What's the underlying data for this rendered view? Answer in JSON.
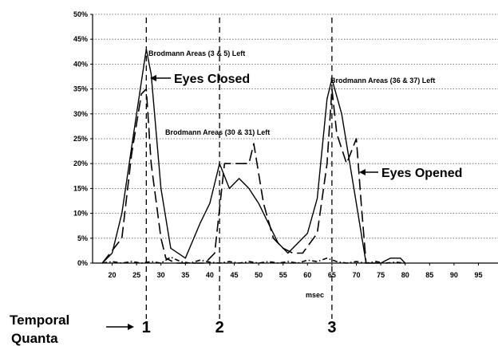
{
  "chart_data": {
    "type": "line",
    "xlabel": "msec",
    "ylim": [
      0,
      50
    ],
    "y_ticks": [
      "0%",
      "5%",
      "10%",
      "15%",
      "20%",
      "25%",
      "30%",
      "35%",
      "40%",
      "45%",
      "50%"
    ],
    "x_ticks": [
      "20",
      "25",
      "30",
      "35",
      "40",
      "45",
      "50",
      "55",
      "60",
      "65",
      "70",
      "75",
      "80",
      "85",
      "90",
      "95"
    ],
    "grid": "horizontal dotted",
    "colors": {
      "line": "#000000",
      "background": "#ffffff"
    },
    "series": [
      {
        "style": "solid",
        "x": [
          18,
          20,
          22,
          25,
          27,
          28,
          30,
          32,
          35,
          38,
          40,
          42,
          44,
          46,
          48,
          50,
          52,
          54,
          56,
          58,
          60,
          62,
          64,
          65,
          67,
          70,
          72,
          75,
          77,
          79,
          80
        ],
        "y": [
          0,
          2,
          10,
          30,
          43,
          38,
          15,
          3,
          1,
          8,
          12,
          20,
          15,
          17,
          15,
          12,
          8,
          4,
          2,
          4,
          6,
          13,
          33,
          37,
          30,
          12,
          0,
          0,
          1,
          1,
          0
        ]
      },
      {
        "style": "long-dash",
        "x": [
          18,
          22,
          24,
          26,
          27,
          28,
          30,
          31,
          33,
          35,
          37,
          39,
          41,
          43,
          45,
          48,
          49,
          51,
          53,
          55,
          57,
          59,
          62,
          64,
          65,
          66,
          68,
          70,
          71,
          72
        ],
        "y": [
          0,
          5,
          22,
          34,
          35,
          20,
          5,
          1,
          0,
          0,
          0,
          0,
          2,
          20,
          20,
          20,
          24,
          12,
          5,
          3,
          2,
          2,
          6,
          20,
          35,
          26,
          20,
          25,
          12,
          0
        ]
      },
      {
        "style": "dash-dot",
        "x": [
          18,
          20,
          22,
          24,
          26,
          28,
          30,
          32,
          34,
          36,
          38,
          40,
          42,
          44,
          46,
          48,
          50,
          52,
          54,
          56,
          58,
          60,
          62,
          64,
          66,
          68,
          70,
          72,
          74,
          76,
          78,
          80
        ],
        "y": [
          0,
          0.3,
          0,
          0.3,
          0,
          0.3,
          0,
          1.2,
          0.3,
          0,
          0.6,
          0.2,
          0,
          0.3,
          0,
          0.3,
          0,
          0.3,
          0,
          0.3,
          0,
          0.6,
          0.3,
          1,
          0.3,
          0,
          0.3,
          0,
          0.3,
          0,
          0.2,
          0
        ]
      }
    ],
    "vlines": [
      {
        "x": 27,
        "label": "1"
      },
      {
        "x": 42,
        "label": "2"
      },
      {
        "x": 65,
        "label": "3"
      }
    ],
    "annotations": [
      "Brodmann Areas (3 & 5) Left",
      "Eyes Closed",
      "Brodmann Areas (30 & 31) Left",
      "Brodmann Areas (36 & 37) Left",
      "Eyes Opened"
    ],
    "quanta_title": [
      "Temporal",
      "Quanta"
    ]
  }
}
